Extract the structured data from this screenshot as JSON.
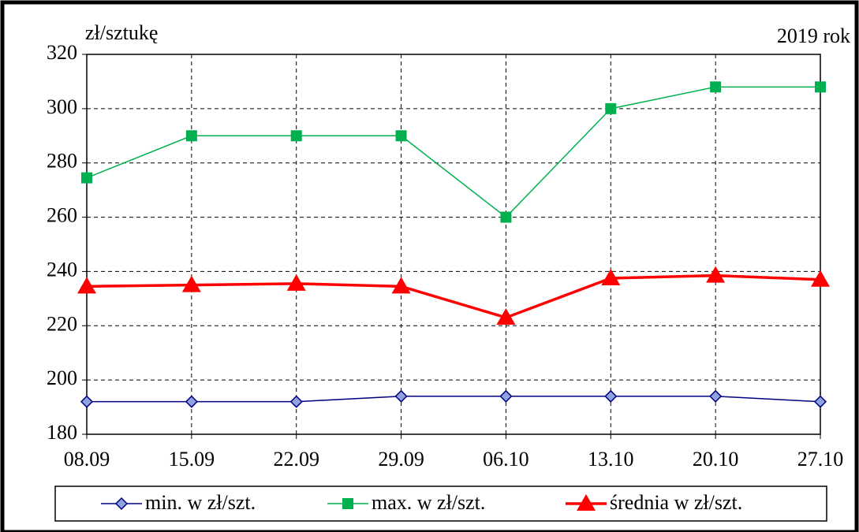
{
  "chart_data": {
    "type": "line",
    "y_label": "zł/sztukę",
    "annotation": "2019 rok",
    "categories": [
      "08.09",
      "15.09",
      "22.09",
      "29.09",
      "06.10",
      "13.10",
      "20.10",
      "27.10"
    ],
    "series": [
      {
        "name": "min. w zł/szt.",
        "color": "#000080",
        "marker": "diamond",
        "values": [
          192,
          192,
          192,
          194,
          194,
          194,
          194,
          192
        ]
      },
      {
        "name": "max. w zł/szt.",
        "color": "#00b050",
        "marker": "square",
        "values": [
          274.5,
          290,
          290,
          290,
          260,
          300,
          308,
          308
        ]
      },
      {
        "name": "średnia w zł/szt.",
        "color": "#ff0000",
        "marker": "triangle",
        "values": [
          234.5,
          235,
          235.5,
          234.5,
          223,
          237.5,
          238.5,
          237
        ]
      }
    ],
    "ylim": [
      180,
      320
    ],
    "yticks": [
      180,
      200,
      220,
      240,
      260,
      280,
      300,
      320
    ],
    "grid": true,
    "legend": "bottom"
  }
}
